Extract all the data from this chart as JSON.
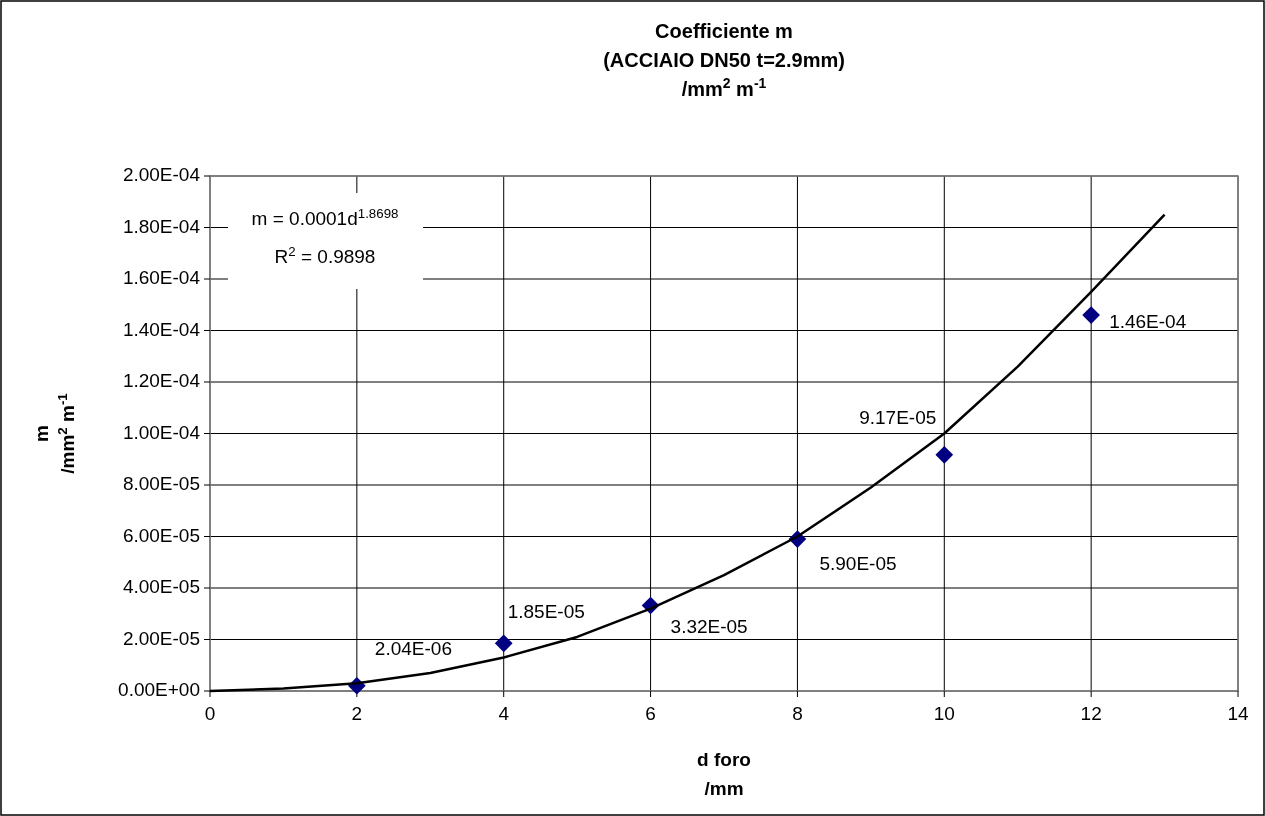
{
  "chart_data": {
    "type": "scatter",
    "title": "Coefficiente m\n(ACCIAIO DN50 t=2.9mm)\n/mm$^{2}$ m$^{-1}$",
    "xlabel": "d foro\n/mm",
    "ylabel": "m\n/mm$^{2}$ m$^{-1}$",
    "annotations": [
      "m = 0.0001d$^{1.8698}$",
      "R$^{2}$ = 0.9898"
    ],
    "series": [
      {
        "color": "#000080",
        "marker": "diamond",
        "x": [
          2,
          4,
          6,
          8,
          10,
          12
        ],
        "values": [
          2.04e-06,
          1.85e-05,
          3.32e-05,
          5.9e-05,
          9.17e-05,
          0.000146
        ],
        "value_labels": [
          "2.04E-06",
          "1.85E-05",
          "3.32E-05",
          "5.90E-05",
          "9.17E-05",
          "1.46E-04"
        ]
      },
      {
        "type": "line",
        "color": "#000000",
        "x": [
          0,
          1,
          2,
          3,
          4,
          5,
          6,
          7,
          8,
          9,
          10,
          11,
          12,
          13
        ],
        "values": [
          0,
          1e-06,
          3e-06,
          7e-06,
          1.3e-05,
          2.1e-05,
          3.2e-05,
          4.5e-05,
          6e-05,
          7.9e-05,
          0.0001,
          0.000126,
          0.000155,
          0.000185
        ]
      }
    ],
    "xlim": [
      0,
      14
    ],
    "xticks": [
      0,
      2,
      4,
      6,
      8,
      10,
      12,
      14
    ],
    "ylim": [
      0,
      0.0002
    ],
    "yticks": [
      {
        "value": 0,
        "label": "0.00E+00"
      },
      {
        "value": 2e-05,
        "label": "2.00E-05"
      },
      {
        "value": 4e-05,
        "label": "4.00E-05"
      },
      {
        "value": 6e-05,
        "label": "6.00E-05"
      },
      {
        "value": 8e-05,
        "label": "8.00E-05"
      },
      {
        "value": 0.0001,
        "label": "1.00E-04"
      },
      {
        "value": 0.00012,
        "label": "1.20E-04"
      },
      {
        "value": 0.00014,
        "label": "1.40E-04"
      },
      {
        "value": 0.00016,
        "label": "1.60E-04"
      },
      {
        "value": 0.00018,
        "label": "1.80E-04"
      },
      {
        "value": 0.0002,
        "label": "2.00E-04"
      }
    ],
    "grid": true
  }
}
